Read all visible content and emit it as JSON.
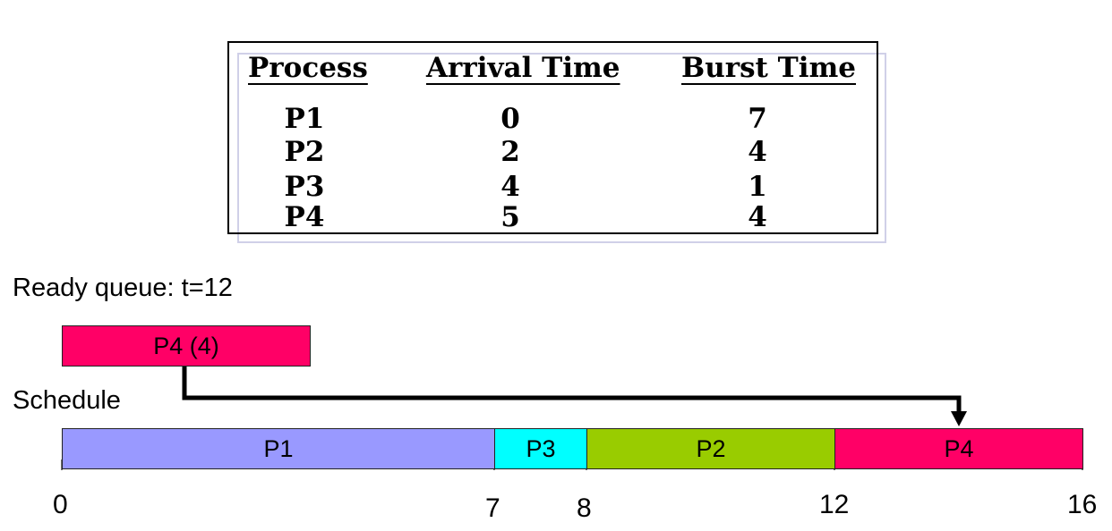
{
  "table": {
    "headers": [
      "Process",
      "Arrival Time",
      "Burst Time"
    ],
    "rows": [
      {
        "process": "P1",
        "arrival": "0",
        "burst": "7"
      },
      {
        "process": "P2",
        "arrival": "2",
        "burst": "4"
      },
      {
        "process": "P3",
        "arrival": "4",
        "burst": "1"
      },
      {
        "process": "P4",
        "arrival": "5",
        "burst": "4"
      }
    ]
  },
  "ready_queue": {
    "label": "Ready queue: t=12",
    "items": [
      {
        "label": "P4 (4)",
        "color": "#ff0066"
      }
    ]
  },
  "schedule": {
    "label": "Schedule",
    "blocks": [
      {
        "label": "P1",
        "start": 0,
        "end": 7,
        "color": "#9999ff"
      },
      {
        "label": "P3",
        "start": 7,
        "end": 8,
        "color": "#00ffff"
      },
      {
        "label": "P2",
        "start": 8,
        "end": 12,
        "color": "#99cc00"
      },
      {
        "label": "P4",
        "start": 12,
        "end": 16,
        "color": "#ff0066"
      }
    ],
    "ticks": [
      "0",
      "7",
      "8",
      "12",
      "16"
    ]
  }
}
